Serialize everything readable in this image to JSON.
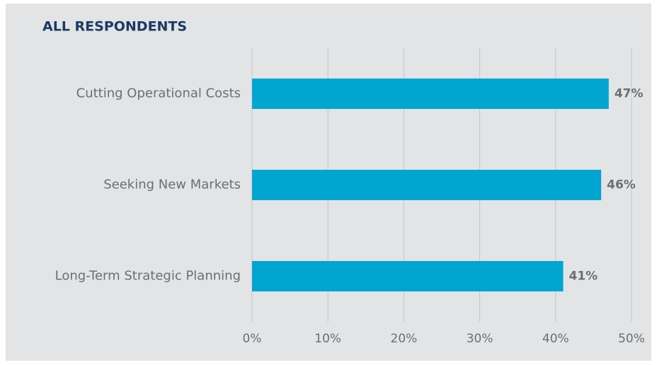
{
  "chart_data": {
    "type": "bar",
    "orientation": "horizontal",
    "title": "ALL RESPONDENTS",
    "categories": [
      "Cutting Operational Costs",
      "Seeking New Markets",
      "Long-Term Strategic Planning"
    ],
    "values": [
      47,
      46,
      41
    ],
    "value_labels": [
      "47%",
      "46%",
      "41%"
    ],
    "color": "#00a6d0",
    "xlim": [
      0,
      50
    ],
    "xticks": [
      {
        "value": 0,
        "label": "0%"
      },
      {
        "value": 10,
        "label": "10%"
      },
      {
        "value": 20,
        "label": "20%"
      },
      {
        "value": 30,
        "label": "30%"
      },
      {
        "value": 40,
        "label": "40%"
      },
      {
        "value": 50,
        "label": "50%"
      }
    ],
    "grid": true
  }
}
